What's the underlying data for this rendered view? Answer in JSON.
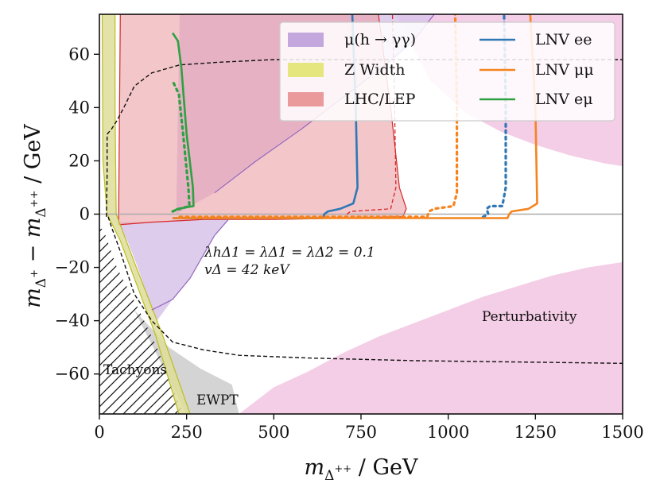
{
  "chart_data": {
    "type": "region-plot",
    "xlabel": "m_Δ++ / GeV",
    "ylabel": "m_Δ+ − m_Δ++ / GeV",
    "xlim": [
      0,
      1500
    ],
    "ylim": [
      -75,
      75
    ],
    "x_ticks": [
      0,
      250,
      500,
      750,
      1000,
      1250,
      1500
    ],
    "y_ticks": [
      -60,
      -40,
      -20,
      0,
      20,
      40,
      60
    ],
    "x_tick_labels": [
      "0",
      "250",
      "500",
      "750",
      "1000",
      "1250",
      "1500"
    ],
    "y_tick_labels": [
      "−60",
      "−40",
      "−20",
      "0",
      "20",
      "40",
      "60"
    ],
    "legend": {
      "placement": "top-right",
      "entries": [
        {
          "label": "μ(h → γγ)",
          "kind": "patch",
          "color": "#c4a8dd"
        },
        {
          "label": "Z Width",
          "kind": "patch",
          "color": "#e6e67e"
        },
        {
          "label": "LHC/LEP",
          "kind": "patch",
          "color": "#ea9a9a"
        },
        {
          "label": "LNV ee",
          "kind": "line",
          "color": "#2d78b5"
        },
        {
          "label": "LNV μμ",
          "kind": "line",
          "color": "#f5841f"
        },
        {
          "label": "LNV eμ",
          "kind": "line",
          "color": "#2ea043"
        }
      ]
    },
    "region_labels": {
      "tachyons": "Tachyons",
      "ewpt": "EWPT",
      "perturbativity": "Perturbativity"
    },
    "annotations": {
      "couplings": "λhΔ1 = λΔ1 = λΔ2 = 0.1",
      "vev": "vΔ = 42 keV"
    },
    "colors": {
      "perturbativity": "#f4cde6",
      "higgs": "#d9c6ea",
      "higgs_edge": "#9467bd",
      "lhc": "#eba0a6",
      "lhc_edge": "#d62728",
      "ewpt": "#cfcfcf",
      "zwidth": "#dede9a",
      "zwidth_edge": "#bcbd22",
      "ee": "#2d78b5",
      "mumu": "#f5841f",
      "emu": "#2ea043"
    },
    "regions": {
      "perturbativity_top": [
        [
          850,
          75
        ],
        [
          950,
          50
        ],
        [
          1050,
          38
        ],
        [
          1150,
          31
        ],
        [
          1250,
          26
        ],
        [
          1350,
          22
        ],
        [
          1450,
          19
        ],
        [
          1500,
          18
        ],
        [
          1500,
          75
        ]
      ],
      "perturbativity_bottom": [
        [
          400,
          -75
        ],
        [
          500,
          -65
        ],
        [
          600,
          -59
        ],
        [
          700,
          -52
        ],
        [
          800,
          -46
        ],
        [
          900,
          -41
        ],
        [
          1000,
          -36
        ],
        [
          1100,
          -31
        ],
        [
          1200,
          -27
        ],
        [
          1300,
          -23
        ],
        [
          1400,
          -20
        ],
        [
          1500,
          -18
        ],
        [
          1500,
          -75
        ]
      ],
      "higgs_lower": [
        [
          55,
          -3
        ],
        [
          80,
          -10
        ],
        [
          110,
          -20
        ],
        [
          140,
          -32
        ],
        [
          165,
          -40
        ],
        [
          210,
          -32
        ],
        [
          260,
          -24
        ],
        [
          330,
          -8
        ],
        [
          370,
          -2
        ],
        [
          260,
          -2
        ],
        [
          150,
          -3
        ]
      ],
      "higgs_upper": [
        [
          220,
          0
        ],
        [
          330,
          8
        ],
        [
          450,
          20
        ],
        [
          580,
          32
        ],
        [
          700,
          44
        ],
        [
          820,
          56
        ],
        [
          900,
          65
        ],
        [
          960,
          75
        ],
        [
          730,
          75
        ],
        [
          230,
          75
        ]
      ],
      "lhc_main": [
        [
          55,
          -4
        ],
        [
          150,
          -3
        ],
        [
          300,
          -2
        ],
        [
          500,
          -2
        ],
        [
          700,
          -1.5
        ],
        [
          870,
          -1
        ],
        [
          880,
          2
        ],
        [
          860,
          10
        ],
        [
          835,
          40
        ],
        [
          800,
          75
        ],
        [
          60,
          75
        ]
      ],
      "ewpt": [
        [
          100,
          -36
        ],
        [
          200,
          -50
        ],
        [
          290,
          -58
        ],
        [
          380,
          -64
        ],
        [
          400,
          -75
        ],
        [
          250,
          -75
        ]
      ],
      "zwidth": [
        [
          8,
          75
        ],
        [
          45,
          75
        ],
        [
          45,
          40
        ],
        [
          48,
          0
        ],
        [
          100,
          -18
        ],
        [
          180,
          -45
        ],
        [
          260,
          -75
        ],
        [
          228,
          -75
        ],
        [
          160,
          -45
        ],
        [
          60,
          -10
        ],
        [
          22,
          0
        ],
        [
          10,
          20
        ]
      ],
      "tachyon": [
        [
          0,
          -5
        ],
        [
          12,
          -6
        ],
        [
          50,
          -20
        ],
        [
          110,
          -35
        ],
        [
          165,
          -50
        ],
        [
          240,
          -75
        ],
        [
          0,
          -75
        ]
      ],
      "ewpt_boundary": [
        [
          20,
          -1
        ],
        [
          22,
          15
        ],
        [
          22,
          30
        ],
        [
          35,
          32
        ],
        [
          50,
          35
        ],
        [
          70,
          40
        ],
        [
          100,
          48
        ],
        [
          150,
          53
        ],
        [
          230,
          56
        ],
        [
          340,
          57
        ],
        [
          500,
          58
        ],
        [
          800,
          58
        ],
        [
          1200,
          58
        ],
        [
          1500,
          58
        ]
      ],
      "ewpt_boundary_low": [
        [
          25,
          -1
        ],
        [
          35,
          -5
        ],
        [
          60,
          -14
        ],
        [
          100,
          -30
        ],
        [
          150,
          -40
        ],
        [
          210,
          -48
        ],
        [
          300,
          -51
        ],
        [
          400,
          -53
        ],
        [
          600,
          -54
        ],
        [
          900,
          -55
        ],
        [
          1200,
          -55.5
        ],
        [
          1500,
          -56
        ]
      ],
      "higgs_boundary_lower": [
        [
          150,
          -36
        ],
        [
          210,
          -32
        ],
        [
          260,
          -24
        ],
        [
          330,
          -8
        ],
        [
          370,
          -2
        ]
      ],
      "higgs_boundary_upper": [
        [
          330,
          8
        ],
        [
          450,
          20
        ],
        [
          580,
          32
        ],
        [
          700,
          44
        ],
        [
          820,
          56
        ],
        [
          900,
          65
        ],
        [
          960,
          75
        ]
      ]
    },
    "series": [
      {
        "name": "LNV ee solid",
        "color": "#2d78b5",
        "dash": "",
        "points": [
          [
            210,
            -1.5
          ],
          [
            640,
            -1.5
          ],
          [
            645,
            0
          ],
          [
            655,
            1
          ],
          [
            690,
            2
          ],
          [
            728,
            4
          ],
          [
            740,
            10
          ],
          [
            735,
            40
          ],
          [
            725,
            75
          ]
        ]
      },
      {
        "name": "LNV ee dotted",
        "color": "#2d78b5",
        "dash": "3,5",
        "points": [
          [
            1100,
            -1
          ],
          [
            1115,
            0
          ],
          [
            1110,
            2
          ],
          [
            1120,
            3
          ],
          [
            1155,
            3
          ],
          [
            1165,
            10
          ],
          [
            1165,
            40
          ],
          [
            1160,
            75
          ]
        ]
      },
      {
        "name": "LNV mumu solid",
        "color": "#f5841f",
        "dash": "",
        "points": [
          [
            210,
            -1.5
          ],
          [
            1170,
            -1.5
          ],
          [
            1175,
            0
          ],
          [
            1182,
            1
          ],
          [
            1230,
            2
          ],
          [
            1255,
            4
          ],
          [
            1250,
            40
          ],
          [
            1235,
            75
          ]
        ]
      },
      {
        "name": "LNV mumu dotted",
        "color": "#f5841f",
        "dash": "3,5",
        "points": [
          [
            230,
            -1
          ],
          [
            940,
            -1
          ],
          [
            945,
            1
          ],
          [
            960,
            2
          ],
          [
            1015,
            3
          ],
          [
            1025,
            8
          ],
          [
            1025,
            40
          ],
          [
            1020,
            75
          ]
        ]
      },
      {
        "name": "LNV emu solid",
        "color": "#2ea043",
        "dash": "",
        "points": [
          [
            210,
            1
          ],
          [
            225,
            2
          ],
          [
            270,
            3
          ],
          [
            268,
            10
          ],
          [
            250,
            30
          ],
          [
            235,
            55
          ],
          [
            225,
            65
          ],
          [
            210,
            68
          ]
        ]
      },
      {
        "name": "LNV emu dotted",
        "color": "#2ea043",
        "dash": "3,5",
        "points": [
          [
            210,
            1
          ],
          [
            230,
            2
          ],
          [
            258,
            3
          ],
          [
            255,
            10
          ],
          [
            240,
            30
          ],
          [
            228,
            45
          ],
          [
            210,
            50
          ]
        ]
      },
      {
        "name": "LHC dashed",
        "color": "#d62728",
        "dash": "5,3",
        "points": [
          [
            350,
            -1.5
          ],
          [
            700,
            -1.5
          ],
          [
            710,
            0
          ],
          [
            720,
            1
          ],
          [
            835,
            2
          ],
          [
            850,
            10
          ],
          [
            845,
            50
          ],
          [
            840,
            75
          ]
        ]
      }
    ]
  }
}
